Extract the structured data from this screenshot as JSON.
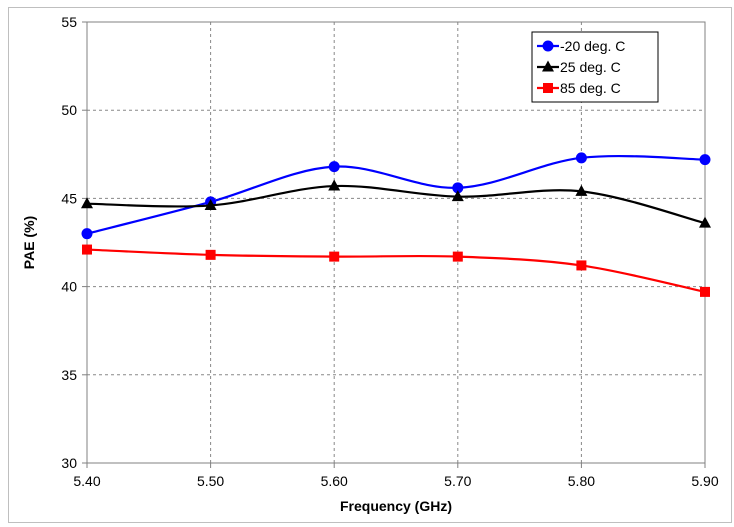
{
  "chart_data": {
    "type": "line",
    "smooth": true,
    "xlabel": "Frequency (GHz)",
    "ylabel": "PAE (%)",
    "x": [
      5.4,
      5.5,
      5.6,
      5.7,
      5.8,
      5.9
    ],
    "x_tick_labels": [
      "5.40",
      "5.50",
      "5.60",
      "5.70",
      "5.80",
      "5.90"
    ],
    "xlim": [
      5.4,
      5.9
    ],
    "ylim": [
      30,
      55
    ],
    "y_ticks": [
      30,
      35,
      40,
      45,
      50,
      55
    ],
    "y_tick_labels": [
      "30",
      "35",
      "40",
      "45",
      "50",
      "55"
    ],
    "grid": true,
    "legend_position": "top-right",
    "series": [
      {
        "name": "-20 deg. C",
        "color": "#0000ff",
        "marker": "circle",
        "values": [
          43.0,
          44.8,
          46.8,
          45.6,
          47.3,
          47.2
        ]
      },
      {
        "name": "25 deg. C",
        "color": "#000000",
        "marker": "triangle",
        "values": [
          44.7,
          44.6,
          45.7,
          45.1,
          45.4,
          43.6
        ]
      },
      {
        "name": "85 deg. C",
        "color": "#ff0000",
        "marker": "square",
        "values": [
          42.1,
          41.8,
          41.7,
          41.7,
          41.2,
          39.7
        ]
      }
    ]
  }
}
